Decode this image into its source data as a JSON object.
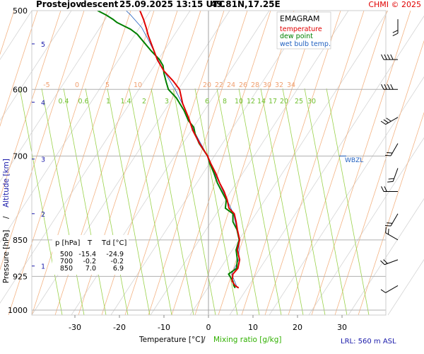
{
  "header": {
    "station": "Prostejov",
    "phase": "descent",
    "datetime": "25.09.2025 13:15 UTC",
    "coords": "49.81N,17.25E",
    "copyright": "CHMI © 2025"
  },
  "legend": {
    "title": "EMAGRAM",
    "items": [
      {
        "label": "temperature",
        "color": "#e00000"
      },
      {
        "label": "dew point",
        "color": "#008000"
      },
      {
        "label": "wet bulb temp.",
        "color": "#2060c0"
      }
    ]
  },
  "axes": {
    "x_label_temp": "Temperature [°C]",
    "x_label_sep": "/",
    "x_label_mix": "Mixing ratio [g/kg]",
    "y_label_pressure": "Pressure [hPa]",
    "y_label_sep": "/",
    "y_label_altitude": "Altitude [km]",
    "lrl": "LRL: 560 m ASL",
    "wbzl": "WBZL"
  },
  "table": {
    "headers": [
      "p [hPa]",
      "T",
      "Td [°C]"
    ],
    "rows": [
      [
        "500",
        "-15.4",
        "-24.9"
      ],
      [
        "700",
        "-0.2",
        "-0.2"
      ],
      [
        "850",
        "7.0",
        "6.9"
      ]
    ]
  },
  "chart_data": {
    "type": "line",
    "xlim": [
      -40,
      40
    ],
    "ylim": [
      1000,
      500
    ],
    "y_scale": "log",
    "grid": true,
    "pressure_ticks": [
      500,
      600,
      700,
      850,
      925,
      1000
    ],
    "temp_ticks": [
      -30,
      -20,
      -10,
      0,
      10,
      20,
      30
    ],
    "altitude_ticks": [
      {
        "label": "1",
        "p": 903
      },
      {
        "label": "2",
        "p": 800
      },
      {
        "label": "3",
        "p": 705
      },
      {
        "label": "4",
        "p": 618
      },
      {
        "label": "5",
        "p": 540
      }
    ],
    "dry_adiabat_labels": [
      "-5",
      "0",
      "5",
      "10",
      "20",
      "22",
      "24",
      "26",
      "28",
      "30",
      "32",
      "34"
    ],
    "mixing_ratio_labels": [
      "0.4",
      "0.6",
      "1",
      "1.4",
      "2",
      "3",
      "6",
      "8",
      "10",
      "12",
      "14",
      "17",
      "20",
      "25",
      "30"
    ],
    "series": [
      {
        "name": "temperature",
        "color": "#e00000",
        "points": [
          {
            "t": 6.8,
            "p": 950
          },
          {
            "t": 6.0,
            "p": 945
          },
          {
            "t": 5.3,
            "p": 935
          },
          {
            "t": 5.5,
            "p": 920
          },
          {
            "t": 6.6,
            "p": 908
          },
          {
            "t": 7.0,
            "p": 890
          },
          {
            "t": 6.5,
            "p": 870
          },
          {
            "t": 7.0,
            "p": 850
          },
          {
            "t": 6.5,
            "p": 830
          },
          {
            "t": 6.2,
            "p": 815
          },
          {
            "t": 5.8,
            "p": 800
          },
          {
            "t": 4.6,
            "p": 790
          },
          {
            "t": 4.2,
            "p": 775
          },
          {
            "t": 3.5,
            "p": 760
          },
          {
            "t": 2.5,
            "p": 745
          },
          {
            "t": 1.6,
            "p": 728
          },
          {
            "t": 0.5,
            "p": 712
          },
          {
            "t": -0.2,
            "p": 700
          },
          {
            "t": -2.0,
            "p": 680
          },
          {
            "t": -3.5,
            "p": 660
          },
          {
            "t": -4.5,
            "p": 640
          },
          {
            "t": -5.8,
            "p": 620
          },
          {
            "t": -6.5,
            "p": 600
          },
          {
            "t": -8.0,
            "p": 588
          },
          {
            "t": -10.0,
            "p": 575
          },
          {
            "t": -11.5,
            "p": 560
          },
          {
            "t": -12.5,
            "p": 545
          },
          {
            "t": -13.5,
            "p": 530
          },
          {
            "t": -14.0,
            "p": 520
          },
          {
            "t": -14.6,
            "p": 510
          },
          {
            "t": -15.4,
            "p": 500
          }
        ]
      },
      {
        "name": "dew point",
        "color": "#008000",
        "points": [
          {
            "t": 6.0,
            "p": 950
          },
          {
            "t": 5.7,
            "p": 945
          },
          {
            "t": 5.5,
            "p": 935
          },
          {
            "t": 4.5,
            "p": 920
          },
          {
            "t": 6.3,
            "p": 908
          },
          {
            "t": 6.5,
            "p": 890
          },
          {
            "t": 6.2,
            "p": 870
          },
          {
            "t": 6.9,
            "p": 850
          },
          {
            "t": 6.4,
            "p": 830
          },
          {
            "t": 5.5,
            "p": 815
          },
          {
            "t": 5.5,
            "p": 800
          },
          {
            "t": 3.8,
            "p": 790
          },
          {
            "t": 4.0,
            "p": 775
          },
          {
            "t": 3.0,
            "p": 760
          },
          {
            "t": 2.0,
            "p": 745
          },
          {
            "t": 1.2,
            "p": 728
          },
          {
            "t": 0.3,
            "p": 712
          },
          {
            "t": -0.2,
            "p": 700
          },
          {
            "t": -2.1,
            "p": 680
          },
          {
            "t": -3.0,
            "p": 665
          },
          {
            "t": -3.3,
            "p": 655
          },
          {
            "t": -4.5,
            "p": 645
          },
          {
            "t": -5.5,
            "p": 630
          },
          {
            "t": -7.2,
            "p": 612
          },
          {
            "t": -9.0,
            "p": 600
          },
          {
            "t": -9.5,
            "p": 590
          },
          {
            "t": -10.0,
            "p": 578
          },
          {
            "t": -10.2,
            "p": 568
          },
          {
            "t": -11.0,
            "p": 560
          },
          {
            "t": -13.0,
            "p": 548
          },
          {
            "t": -14.5,
            "p": 538
          },
          {
            "t": -16.0,
            "p": 528
          },
          {
            "t": -17.5,
            "p": 522
          },
          {
            "t": -19.0,
            "p": 518
          },
          {
            "t": -20.5,
            "p": 514
          },
          {
            "t": -21.5,
            "p": 510
          },
          {
            "t": -23.0,
            "p": 505
          },
          {
            "t": -24.9,
            "p": 500
          }
        ]
      },
      {
        "name": "wet bulb temp.",
        "color": "#2060c0",
        "points": [
          {
            "t": 6.5,
            "p": 950
          },
          {
            "t": 5.2,
            "p": 920
          },
          {
            "t": 6.8,
            "p": 890
          },
          {
            "t": 6.9,
            "p": 850
          },
          {
            "t": 5.6,
            "p": 800
          },
          {
            "t": 3.3,
            "p": 760
          },
          {
            "t": 0.4,
            "p": 712
          },
          {
            "t": -0.2,
            "p": 700
          },
          {
            "t": -3.3,
            "p": 660
          },
          {
            "t": -5.5,
            "p": 625
          },
          {
            "t": -7.5,
            "p": 600
          },
          {
            "t": -10.0,
            "p": 575
          },
          {
            "t": -11.5,
            "p": 558
          },
          {
            "t": -13.5,
            "p": 535
          },
          {
            "t": -15.0,
            "p": 520
          },
          {
            "t": -17.5,
            "p": 505
          },
          {
            "t": -18.5,
            "p": 500
          }
        ]
      }
    ],
    "wind_barbs": [
      {
        "p": 510,
        "dir": 180,
        "speed": 20
      },
      {
        "p": 560,
        "dir": 270,
        "speed": 40
      },
      {
        "p": 600,
        "dir": 270,
        "speed": 40
      },
      {
        "p": 640,
        "dir": 240,
        "speed": 25
      },
      {
        "p": 680,
        "dir": 210,
        "speed": 15
      },
      {
        "p": 720,
        "dir": 200,
        "speed": 15
      },
      {
        "p": 760,
        "dir": 270,
        "speed": 15
      },
      {
        "p": 800,
        "dir": 210,
        "speed": 20
      },
      {
        "p": 850,
        "dir": 300,
        "speed": 15
      },
      {
        "p": 890,
        "dir": 250,
        "speed": 15
      },
      {
        "p": 945,
        "dir": 240,
        "speed": 10
      }
    ]
  }
}
